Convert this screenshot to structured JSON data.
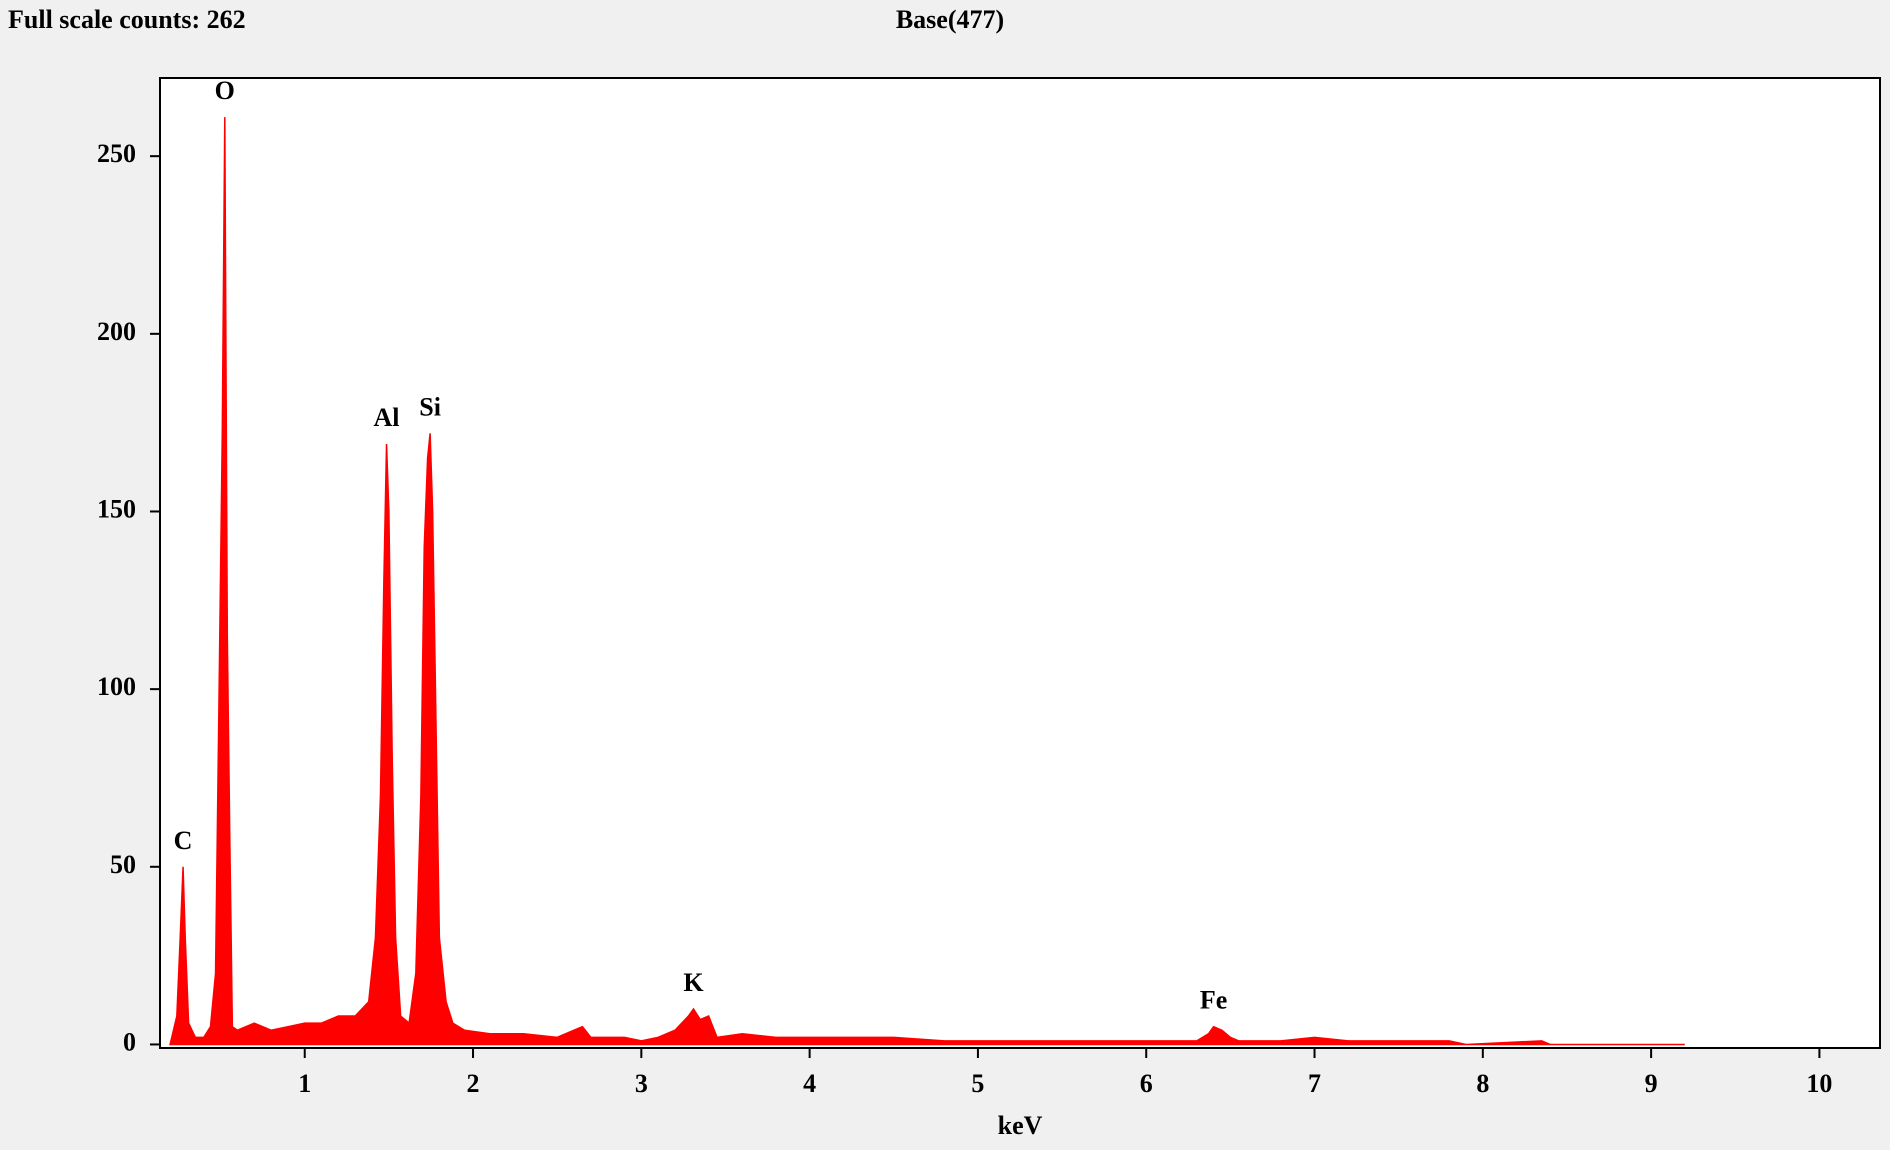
{
  "chart_data": {
    "type": "area",
    "title": "Base(477)",
    "subtitle": "Full scale counts: 262",
    "x_label": "keV",
    "color": "#ff0000",
    "x": [
      0.2,
      0.24,
      0.26,
      0.277,
      0.29,
      0.31,
      0.35,
      0.4,
      0.44,
      0.47,
      0.49,
      0.51,
      0.525,
      0.54,
      0.555,
      0.57,
      0.6,
      0.7,
      0.8,
      0.9,
      1.0,
      1.1,
      1.2,
      1.3,
      1.38,
      1.42,
      1.45,
      1.47,
      1.486,
      1.5,
      1.52,
      1.54,
      1.57,
      1.62,
      1.66,
      1.69,
      1.71,
      1.73,
      1.745,
      1.76,
      1.78,
      1.8,
      1.84,
      1.88,
      1.95,
      2.1,
      2.3,
      2.5,
      2.6,
      2.65,
      2.7,
      2.9,
      3.0,
      3.1,
      3.2,
      3.28,
      3.31,
      3.35,
      3.4,
      3.45,
      3.6,
      3.8,
      4.0,
      4.3,
      4.5,
      4.8,
      5.0,
      5.5,
      6.0,
      6.3,
      6.37,
      6.4,
      6.45,
      6.5,
      6.55,
      6.8,
      7.0,
      7.2,
      7.5,
      7.8,
      7.9,
      8.35,
      8.4,
      9.2
    ],
    "values": [
      0,
      8,
      30,
      50,
      30,
      6,
      2,
      2,
      5,
      20,
      95,
      172,
      261,
      115,
      57,
      5,
      4,
      6,
      4,
      5,
      6,
      6,
      8,
      8,
      12,
      30,
      70,
      130,
      169,
      150,
      80,
      30,
      8,
      6,
      20,
      70,
      140,
      165,
      172,
      150,
      90,
      30,
      12,
      6,
      4,
      3,
      3,
      2,
      4,
      5,
      2,
      2,
      1,
      2,
      4,
      8,
      10,
      7,
      8,
      2,
      3,
      2,
      2,
      2,
      2,
      1,
      1,
      1,
      1,
      1,
      3,
      5,
      4,
      2,
      1,
      1,
      2,
      1,
      1,
      1,
      0,
      1,
      0,
      0
    ],
    "annotations": [
      {
        "text": "C",
        "x": 0.277
      },
      {
        "text": "O",
        "x": 0.525
      },
      {
        "text": "Al",
        "x": 1.486
      },
      {
        "text": "Si",
        "x": 1.745
      },
      {
        "text": "K",
        "x": 3.31
      },
      {
        "text": "Fe",
        "x": 6.4
      }
    ],
    "xlim": [
      0.14,
      10.36
    ],
    "ylim": [
      -1,
      272
    ],
    "xticks": [
      1,
      2,
      3,
      4,
      5,
      6,
      7,
      8,
      9,
      10
    ],
    "yticks": [
      0,
      50,
      100,
      150,
      200,
      250
    ]
  }
}
